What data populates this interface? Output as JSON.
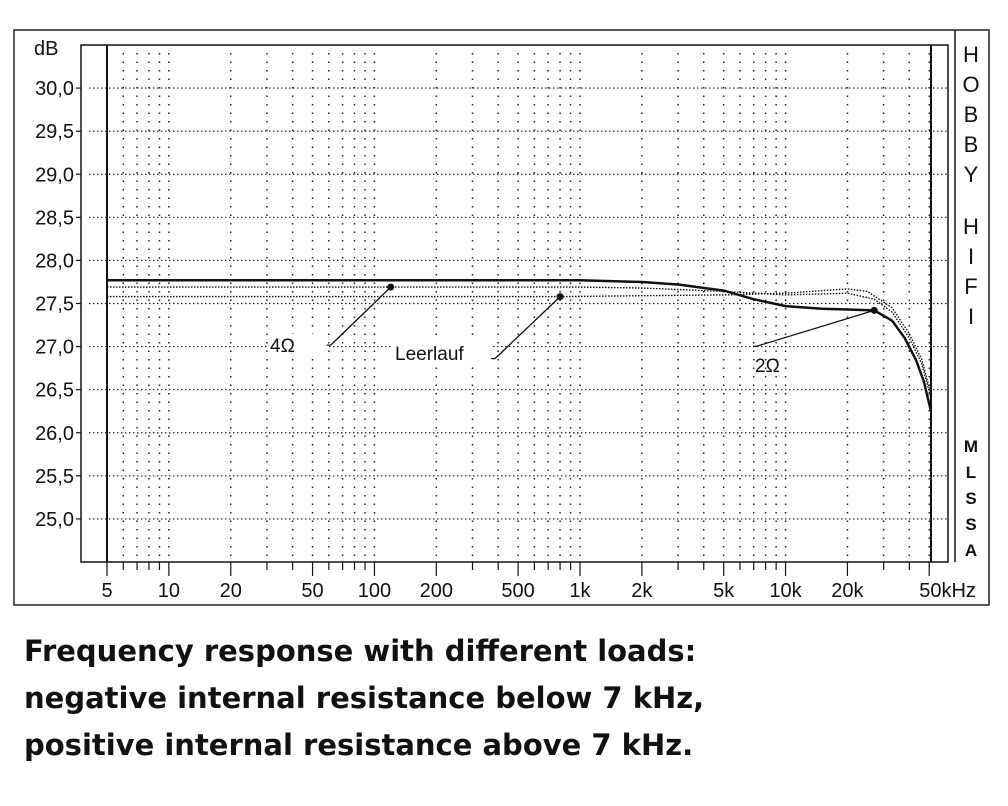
{
  "chart_data": {
    "type": "line",
    "xscale": "log",
    "xlim": [
      5,
      51000
    ],
    "ylim": [
      24.5,
      30.5
    ],
    "ylabel": "dB",
    "grid": true,
    "xticks": [
      {
        "v": 5,
        "label": "5"
      },
      {
        "v": 10,
        "label": "10"
      },
      {
        "v": 20,
        "label": "20"
      },
      {
        "v": 50,
        "label": "50"
      },
      {
        "v": 100,
        "label": "100"
      },
      {
        "v": 200,
        "label": "200"
      },
      {
        "v": 500,
        "label": "500"
      },
      {
        "v": 1000,
        "label": "1k"
      },
      {
        "v": 2000,
        "label": "2k"
      },
      {
        "v": 5000,
        "label": "5k"
      },
      {
        "v": 10000,
        "label": "10k"
      },
      {
        "v": 20000,
        "label": "20k"
      },
      {
        "v": 50000,
        "label": "50kHz"
      }
    ],
    "yticks": [
      {
        "v": 30.0,
        "label": "30,0"
      },
      {
        "v": 29.5,
        "label": "29,5"
      },
      {
        "v": 29.0,
        "label": "29,0"
      },
      {
        "v": 28.5,
        "label": "28,5"
      },
      {
        "v": 28.0,
        "label": "28,0"
      },
      {
        "v": 27.5,
        "label": "27,5"
      },
      {
        "v": 27.0,
        "label": "27,0"
      },
      {
        "v": 26.5,
        "label": "26,5"
      },
      {
        "v": 26.0,
        "label": "26,0"
      },
      {
        "v": 25.5,
        "label": "25,5"
      },
      {
        "v": 25.0,
        "label": "25,0"
      }
    ],
    "series": [
      {
        "name": "2Ω",
        "style": "solid",
        "x": [
          5,
          100,
          1000,
          2000,
          3000,
          5000,
          7000,
          10000,
          15000,
          20000,
          27000,
          33000,
          38000,
          43000,
          47000,
          51000
        ],
        "y": [
          27.77,
          27.77,
          27.77,
          27.75,
          27.72,
          27.65,
          27.55,
          27.47,
          27.44,
          27.43,
          27.42,
          27.3,
          27.1,
          26.85,
          26.6,
          26.25
        ],
        "label_point": {
          "x": 27000,
          "y": 27.42
        }
      },
      {
        "name": "4Ω",
        "style": "dotted",
        "x": [
          5,
          100,
          1000,
          2000,
          5000,
          10000,
          20000,
          27000,
          33000,
          40000,
          46000,
          51000
        ],
        "y": [
          27.69,
          27.69,
          27.69,
          27.68,
          27.64,
          27.6,
          27.62,
          27.55,
          27.4,
          27.1,
          26.8,
          26.4
        ],
        "label_point": {
          "x": 120,
          "y": 27.69
        }
      },
      {
        "name": "Leerlauf",
        "style": "dotted",
        "x": [
          5,
          100,
          800,
          2000,
          5000,
          10000,
          20000,
          25000,
          33000,
          40000,
          46000,
          51000
        ],
        "y": [
          27.58,
          27.58,
          27.58,
          27.59,
          27.6,
          27.62,
          27.67,
          27.64,
          27.45,
          27.15,
          26.85,
          26.45
        ],
        "label_point": {
          "x": 800,
          "y": 27.58
        }
      }
    ]
  },
  "side_label": "HOBBY HIFI",
  "side_logo": "MLSSA",
  "caption": [
    "Frequency response with different loads:",
    "negative internal resistance below 7 kHz,",
    "positive internal resistance above 7 kHz."
  ]
}
